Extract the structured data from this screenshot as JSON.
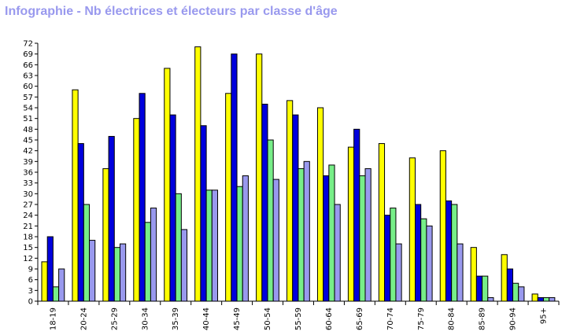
{
  "colors": {
    "title": "#9999ee",
    "series": [
      "#ffff00",
      "#0000dd",
      "#77ee88",
      "#9999ee"
    ]
  },
  "chart_data": {
    "type": "bar",
    "title": "Infographie - Nb électrices et électeurs par classe d'âge",
    "xlabel": "",
    "ylabel": "",
    "ylim": [
      0,
      72
    ],
    "yticks": [
      0,
      3,
      6,
      9,
      12,
      15,
      18,
      21,
      24,
      27,
      30,
      33,
      36,
      39,
      42,
      45,
      48,
      51,
      54,
      57,
      60,
      63,
      66,
      69,
      72
    ],
    "grid": false,
    "legend": "none",
    "categories": [
      "18-19",
      "20-24",
      "25-29",
      "30-34",
      "35-39",
      "40-44",
      "45-49",
      "50-54",
      "55-59",
      "60-64",
      "65-69",
      "70-74",
      "75-79",
      "80-84",
      "85-89",
      "90-94",
      "95+"
    ],
    "series": [
      {
        "values": [
          11,
          59,
          37,
          51,
          65,
          71,
          58,
          69,
          56,
          54,
          43,
          44,
          40,
          42,
          15,
          13,
          2
        ]
      },
      {
        "values": [
          18,
          44,
          46,
          58,
          52,
          49,
          69,
          55,
          52,
          35,
          48,
          24,
          27,
          28,
          7,
          9,
          1
        ]
      },
      {
        "values": [
          4,
          27,
          15,
          22,
          30,
          31,
          32,
          45,
          37,
          38,
          35,
          26,
          23,
          27,
          7,
          5,
          1
        ]
      },
      {
        "values": [
          9,
          17,
          16,
          26,
          20,
          31,
          35,
          34,
          39,
          27,
          37,
          16,
          21,
          16,
          1,
          4,
          1
        ]
      }
    ]
  }
}
